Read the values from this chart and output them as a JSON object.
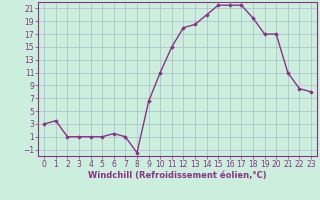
{
  "x": [
    0,
    1,
    2,
    3,
    4,
    5,
    6,
    7,
    8,
    9,
    10,
    11,
    12,
    13,
    14,
    15,
    16,
    17,
    18,
    19,
    20,
    21,
    22,
    23
  ],
  "y": [
    3,
    3.5,
    1,
    1,
    1,
    1,
    1.5,
    1,
    -1.5,
    6.5,
    11,
    15,
    18,
    18.5,
    20,
    21.5,
    21.5,
    21.5,
    19.5,
    17,
    17,
    11,
    8.5,
    8
  ],
  "line_color": "#883388",
  "marker": "D",
  "markersize": 1.8,
  "linewidth": 1.0,
  "bg_color": "#cceedd",
  "grid_color": "#aabbcc",
  "xlabel": "Windchill (Refroidissement éolien,°C)",
  "xlabel_fontsize": 6.0,
  "tick_fontsize": 5.5,
  "ylim": [
    -2,
    22
  ],
  "xlim": [
    -0.5,
    23.5
  ],
  "yticks": [
    -1,
    1,
    3,
    5,
    7,
    9,
    11,
    13,
    15,
    17,
    19,
    21
  ],
  "xticks": [
    0,
    1,
    2,
    3,
    4,
    5,
    6,
    7,
    8,
    9,
    10,
    11,
    12,
    13,
    14,
    15,
    16,
    17,
    18,
    19,
    20,
    21,
    22,
    23
  ]
}
